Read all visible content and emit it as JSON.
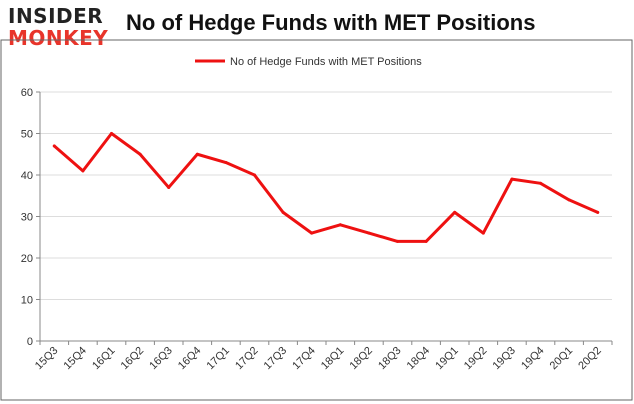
{
  "logo": {
    "line1": "INSIDER",
    "line2": "MONKEY"
  },
  "colors": {
    "series": "#ee1111",
    "grid": "#dddddd",
    "axis": "#888888",
    "frame": "#666666"
  },
  "chart_data": {
    "type": "line",
    "title": "No of Hedge Funds with MET Positions",
    "xlabel": "",
    "ylabel": "",
    "ylim": [
      0,
      60
    ],
    "yticks": [
      0,
      10,
      20,
      30,
      40,
      50,
      60
    ],
    "grid": true,
    "legend_position": "top-center",
    "categories": [
      "15Q3",
      "15Q4",
      "16Q1",
      "16Q2",
      "16Q3",
      "16Q4",
      "17Q1",
      "17Q2",
      "17Q3",
      "17Q4",
      "18Q1",
      "18Q2",
      "18Q3",
      "18Q4",
      "19Q1",
      "19Q2",
      "19Q3",
      "19Q4",
      "20Q1",
      "20Q2"
    ],
    "series": [
      {
        "name": "No of Hedge Funds with MET Positions",
        "values": [
          47,
          41,
          50,
          45,
          37,
          45,
          43,
          40,
          31,
          26,
          28,
          26,
          24,
          24,
          31,
          26,
          39,
          38,
          34,
          31
        ]
      }
    ]
  }
}
